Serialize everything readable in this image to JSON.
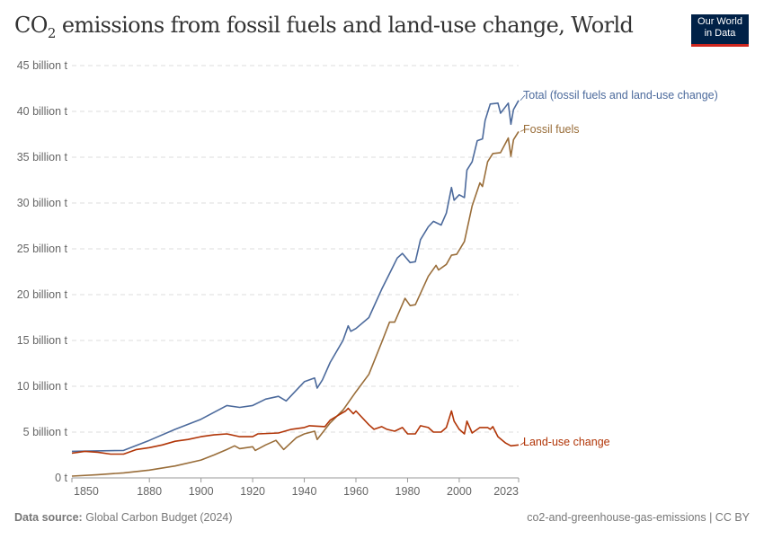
{
  "title_main": "CO",
  "title_sub": "2",
  "title_rest": " emissions from fossil fuels and land-use change, World",
  "logo": {
    "line1": "Our World",
    "line2": "in Data"
  },
  "footer": {
    "source_label": "Data source:",
    "source": "Global Carbon Budget (2024)",
    "right": "co2-and-greenhouse-gas-emissions | CC BY"
  },
  "chart_data": {
    "type": "line",
    "title": "CO₂ emissions from fossil fuels and land-use change, World",
    "xlim": [
      1850,
      2023
    ],
    "ylim": [
      0,
      45
    ],
    "grid": true,
    "x_ticks": [
      "1850",
      "1880",
      "1900",
      "1920",
      "1940",
      "1960",
      "1980",
      "2000",
      "2023"
    ],
    "y_ticks": [
      "0 t",
      "5 billion t",
      "10 billion t",
      "15 billion t",
      "20 billion t",
      "25 billion t",
      "30 billion t",
      "35 billion t",
      "40 billion t",
      "45 billion t"
    ],
    "y_unit": "billion t",
    "series": [
      {
        "name": "Total (fossil fuels and land-use change)",
        "color": "#4c6a9c",
        "x": [
          1850,
          1870,
          1880,
          1890,
          1900,
          1910,
          1915,
          1920,
          1925,
          1930,
          1933,
          1940,
          1944,
          1945,
          1947,
          1950,
          1955,
          1957,
          1958,
          1960,
          1965,
          1970,
          1973,
          1976,
          1978,
          1981,
          1983,
          1985,
          1988,
          1990,
          1993,
          1995,
          1997,
          1998,
          2000,
          2002,
          2003,
          2005,
          2007,
          2009,
          2010,
          2012,
          2015,
          2016,
          2019,
          2020,
          2021,
          2023
        ],
        "y": [
          2.9,
          3.0,
          4.1,
          5.3,
          6.4,
          7.9,
          7.7,
          7.9,
          8.6,
          8.9,
          8.4,
          10.5,
          10.9,
          9.8,
          10.7,
          12.6,
          15.0,
          16.6,
          16.0,
          16.3,
          17.5,
          20.6,
          22.3,
          24.0,
          24.5,
          23.5,
          23.6,
          26.0,
          27.4,
          28.0,
          27.6,
          28.9,
          31.7,
          30.3,
          30.9,
          30.6,
          33.6,
          34.5,
          36.8,
          37.0,
          39.0,
          40.8,
          40.9,
          39.8,
          40.9,
          38.6,
          40.2,
          41.2
        ]
      },
      {
        "name": "Fossil fuels",
        "color": "#996d39",
        "x": [
          1850,
          1860,
          1870,
          1880,
          1890,
          1900,
          1905,
          1910,
          1913,
          1915,
          1920,
          1921,
          1925,
          1929,
          1932,
          1937,
          1940,
          1944,
          1945,
          1950,
          1955,
          1960,
          1965,
          1970,
          1973,
          1975,
          1979,
          1981,
          1983,
          1988,
          1991,
          1992,
          1995,
          1997,
          1999,
          2002,
          2005,
          2008,
          2009,
          2011,
          2013,
          2016,
          2019,
          2020,
          2021,
          2023
        ],
        "y": [
          0.2,
          0.35,
          0.55,
          0.85,
          1.3,
          1.95,
          2.5,
          3.1,
          3.5,
          3.2,
          3.4,
          3.0,
          3.6,
          4.1,
          3.1,
          4.4,
          4.8,
          5.1,
          4.2,
          6.0,
          7.4,
          9.4,
          11.3,
          14.8,
          17.0,
          17.0,
          19.6,
          18.8,
          18.9,
          22.0,
          23.2,
          22.7,
          23.3,
          24.3,
          24.4,
          25.8,
          29.7,
          32.2,
          31.8,
          34.5,
          35.4,
          35.5,
          37.1,
          35.1,
          36.9,
          37.8
        ]
      },
      {
        "name": "Land-use change",
        "color": "#b13507",
        "x": [
          1850,
          1855,
          1860,
          1865,
          1870,
          1875,
          1880,
          1885,
          1890,
          1895,
          1900,
          1905,
          1910,
          1915,
          1920,
          1922,
          1930,
          1935,
          1940,
          1942,
          1948,
          1950,
          1953,
          1956,
          1957,
          1959,
          1960,
          1965,
          1967,
          1970,
          1972,
          1975,
          1978,
          1980,
          1983,
          1985,
          1988,
          1990,
          1993,
          1995,
          1997,
          1998,
          2000,
          2002,
          2003,
          2005,
          2008,
          2011,
          2012,
          2013,
          2015,
          2018,
          2020,
          2023
        ],
        "y": [
          2.7,
          2.9,
          2.8,
          2.6,
          2.6,
          3.1,
          3.3,
          3.6,
          4.0,
          4.2,
          4.5,
          4.7,
          4.8,
          4.5,
          4.5,
          4.8,
          4.9,
          5.3,
          5.5,
          5.7,
          5.6,
          6.3,
          6.8,
          7.3,
          7.6,
          7.0,
          7.3,
          5.8,
          5.3,
          5.6,
          5.3,
          5.1,
          5.5,
          4.8,
          4.8,
          5.7,
          5.5,
          5.0,
          5.0,
          5.5,
          7.3,
          6.2,
          5.3,
          4.8,
          6.2,
          4.9,
          5.5,
          5.5,
          5.3,
          5.6,
          4.5,
          3.8,
          3.5,
          3.6
        ]
      }
    ]
  }
}
